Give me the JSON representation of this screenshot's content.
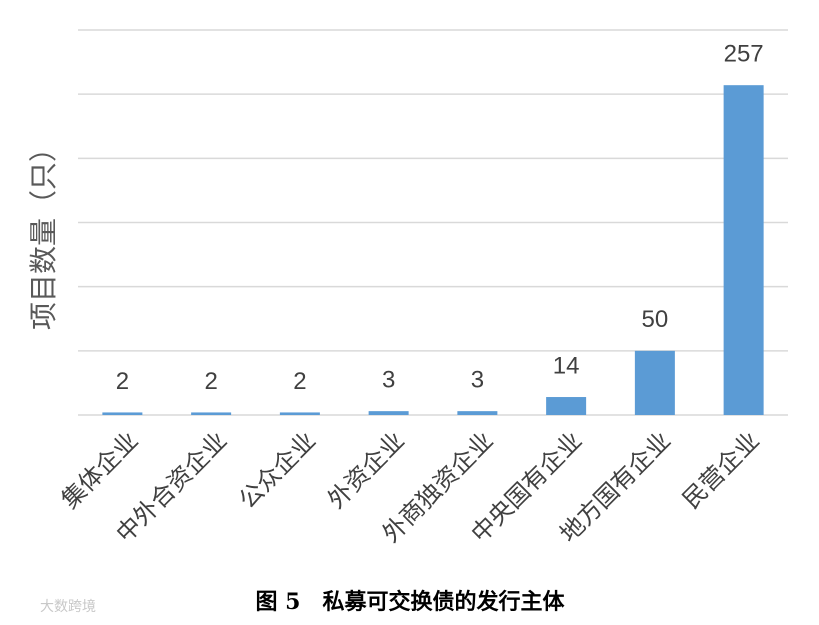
{
  "chart_data": {
    "type": "bar",
    "title": "图 5　私募可交换债的发行主体",
    "y_label": "项目数量（只）",
    "categories": [
      "集体企业",
      "中外合资企业",
      "公众企业",
      "外资企业",
      "外商独资企业",
      "中央国有企业",
      "地方国有企业",
      "民营企业"
    ],
    "values": [
      2,
      2,
      2,
      3,
      3,
      14,
      50,
      257
    ],
    "color": "#5b9bd5",
    "ylim": [
      0,
      300
    ],
    "yticks": [
      0,
      50,
      100,
      150,
      200,
      250,
      300
    ],
    "grid": true
  },
  "watermark": "大数跨境"
}
